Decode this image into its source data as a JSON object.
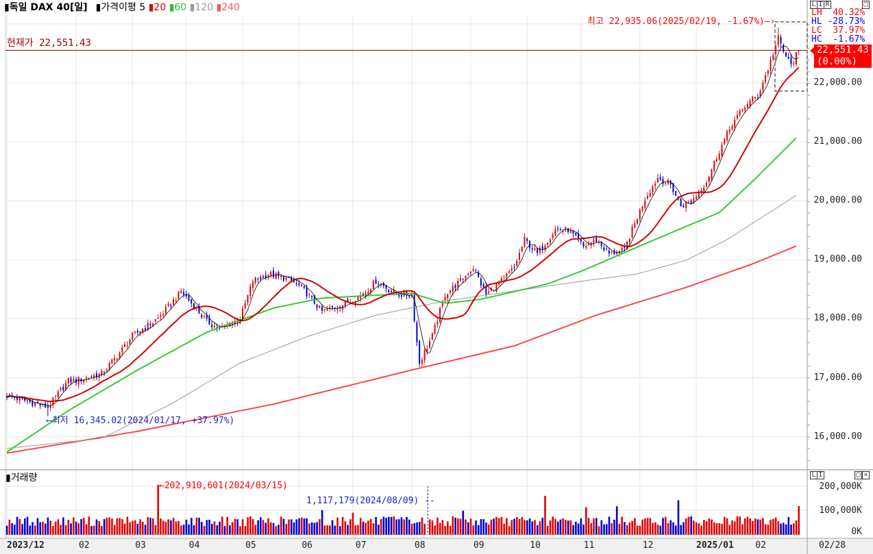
{
  "header": {
    "instrument": "독일 DAX 40[일]",
    "ma_label": "가격이평 5",
    "ma20": "20",
    "ma60": "60",
    "ma120": "120",
    "ma240": "240"
  },
  "current_price_label": "현재가 22,551.43",
  "high_annotation": "최고 22,935.06(2025/02/19, -1.67%)",
  "low_annotation": "최저 16,345.02(2024/01/17, +37.97%)",
  "stats": [
    {
      "label": "LH",
      "value": "40.32%",
      "color": "#ff0000"
    },
    {
      "label": "HL",
      "value": "-28.73%",
      "color": "#0000ff"
    },
    {
      "label": "LC",
      "value": "37.97%",
      "color": "#ff0000"
    },
    {
      "label": "HC",
      "value": "-1.67%",
      "color": "#0000ff"
    }
  ],
  "price_tag": {
    "price": "22,551.43",
    "change": "(0.00%)"
  },
  "panel_buttons": [
    "L",
    "I",
    "R"
  ],
  "volume_buttons": [
    "L",
    "I"
  ],
  "volume": {
    "title": "거래량",
    "max_annotation": "202,910,601(2024/03/15)",
    "min_annotation": "1,117,179(2024/08/09)",
    "axis_labels": [
      "200,000K",
      "100,000K",
      "0K"
    ]
  },
  "last_date": "02/28",
  "colors": {
    "up": "#e00000",
    "down": "#0000d0",
    "ma5": "#000000",
    "ma20": "#d40000",
    "ma60": "#33cc33",
    "ma120": "#999999",
    "ma240": "#ff4444"
  },
  "chart_data": {
    "type": "candlestick",
    "title": "독일 DAX 40[일]",
    "y_axis_labels": [
      "22,000.00",
      "21,000.00",
      "20,000.00",
      "19,000.00",
      "18,000.00",
      "17,000.00",
      "16,000.00"
    ],
    "y_axis_values": [
      22000,
      21000,
      20000,
      19000,
      18000,
      17000,
      16000
    ],
    "ylim": [
      15400,
      23400
    ],
    "trading_days": 310,
    "x_month_labels": [
      {
        "label": "2023/12",
        "day": 0,
        "bold": true
      },
      {
        "label": "02",
        "day": 27
      },
      {
        "label": "03",
        "day": 49
      },
      {
        "label": "04",
        "day": 70
      },
      {
        "label": "05",
        "day": 92
      },
      {
        "label": "06",
        "day": 114
      },
      {
        "label": "07",
        "day": 135
      },
      {
        "label": "08",
        "day": 158
      },
      {
        "label": "09",
        "day": 181
      },
      {
        "label": "10",
        "day": 203
      },
      {
        "label": "11",
        "day": 224
      },
      {
        "label": "12",
        "day": 247
      },
      {
        "label": "2025/01",
        "day": 269,
        "bold": true
      },
      {
        "label": "02",
        "day": 291
      }
    ],
    "close_keyframes": [
      [
        0,
        16700
      ],
      [
        16,
        16500
      ],
      [
        24,
        16950
      ],
      [
        27,
        16950
      ],
      [
        37,
        17070
      ],
      [
        43,
        17370
      ],
      [
        49,
        17710
      ],
      [
        59,
        18000
      ],
      [
        67,
        18410
      ],
      [
        68,
        18470
      ],
      [
        78,
        17950
      ],
      [
        83,
        17830
      ],
      [
        91,
        18000
      ],
      [
        96,
        18640
      ],
      [
        102,
        18760
      ],
      [
        110,
        18670
      ],
      [
        115,
        18530
      ],
      [
        123,
        18120
      ],
      [
        131,
        18240
      ],
      [
        139,
        18410
      ],
      [
        144,
        18640
      ],
      [
        152,
        18410
      ],
      [
        158,
        18410
      ],
      [
        160,
        17600
      ],
      [
        161,
        17250
      ],
      [
        166,
        17710
      ],
      [
        171,
        18410
      ],
      [
        177,
        18640
      ],
      [
        182,
        18870
      ],
      [
        187,
        18410
      ],
      [
        193,
        18640
      ],
      [
        198,
        18870
      ],
      [
        202,
        19340
      ],
      [
        207,
        19100
      ],
      [
        214,
        19510
      ],
      [
        219,
        19510
      ],
      [
        225,
        19220
      ],
      [
        230,
        19340
      ],
      [
        235,
        19100
      ],
      [
        241,
        19160
      ],
      [
        243,
        19400
      ],
      [
        249,
        20040
      ],
      [
        254,
        20390
      ],
      [
        259,
        20270
      ],
      [
        263,
        19920
      ],
      [
        267,
        19980
      ],
      [
        273,
        20330
      ],
      [
        278,
        20850
      ],
      [
        283,
        21310
      ],
      [
        289,
        21660
      ],
      [
        293,
        21780
      ],
      [
        297,
        22240
      ],
      [
        301,
        22760
      ],
      [
        303,
        22530
      ],
      [
        306,
        22300
      ],
      [
        309,
        22551.43
      ]
    ],
    "high": 22935.06,
    "low": 16345.02,
    "current": 22551.43,
    "ma60_keyframes": [
      [
        0,
        15740
      ],
      [
        24,
        16440
      ],
      [
        51,
        17130
      ],
      [
        78,
        17770
      ],
      [
        104,
        18180
      ],
      [
        123,
        18350
      ],
      [
        158,
        18430
      ],
      [
        171,
        18260
      ],
      [
        185,
        18330
      ],
      [
        211,
        18590
      ],
      [
        225,
        18820
      ],
      [
        243,
        19160
      ],
      [
        262,
        19510
      ],
      [
        278,
        19800
      ],
      [
        291,
        20330
      ],
      [
        309,
        21110
      ]
    ],
    "ma120_keyframes": [
      [
        0,
        15800
      ],
      [
        37,
        15970
      ],
      [
        64,
        16550
      ],
      [
        91,
        17250
      ],
      [
        118,
        17710
      ],
      [
        144,
        18060
      ],
      [
        171,
        18300
      ],
      [
        198,
        18470
      ],
      [
        225,
        18640
      ],
      [
        246,
        18760
      ],
      [
        265,
        18990
      ],
      [
        281,
        19340
      ],
      [
        309,
        20120
      ]
    ],
    "ma240_keyframes": [
      [
        0,
        15720
      ],
      [
        51,
        16090
      ],
      [
        104,
        16550
      ],
      [
        158,
        17130
      ],
      [
        198,
        17540
      ],
      [
        230,
        18060
      ],
      [
        265,
        18530
      ],
      [
        291,
        18930
      ],
      [
        309,
        19250
      ]
    ],
    "volume_spikes_k": [
      [
        59,
        202910
      ],
      [
        164,
        1117
      ],
      [
        155,
        62000
      ],
      [
        123,
        100000
      ],
      [
        135,
        90000
      ],
      [
        210,
        158000
      ],
      [
        178,
        98000
      ],
      [
        262,
        140000
      ],
      [
        238,
        116000
      ],
      [
        226,
        112000
      ],
      [
        309,
        117000
      ]
    ],
    "volume_typical_k": [
      35000,
      75000
    ],
    "volume_ylim_k": [
      0,
      230000
    ]
  }
}
